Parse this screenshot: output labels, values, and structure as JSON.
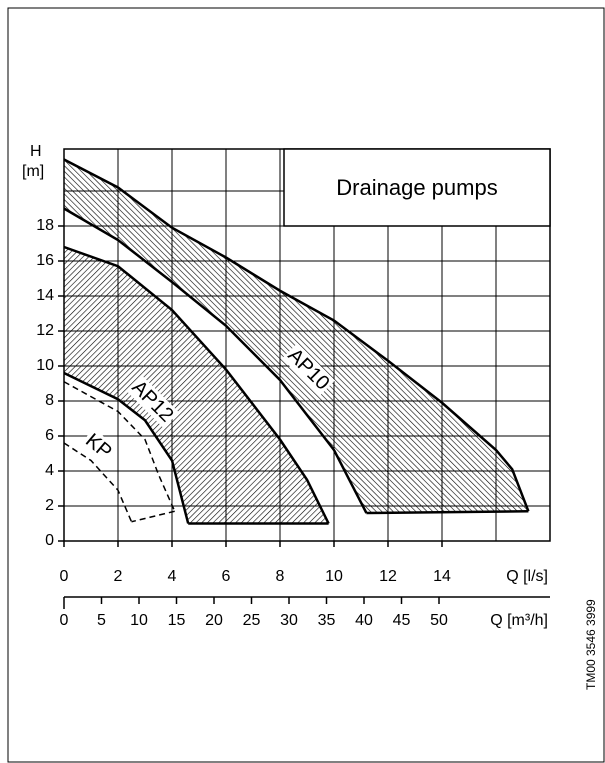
{
  "chart_data": {
    "type": "band",
    "title": "Drainage pumps",
    "y_label": "H",
    "y_unit": "[m]",
    "x_label": "Q [l/s]",
    "x2_label": "Q [m³/h]",
    "code": "TM00 3546 3999",
    "xlim": [
      0,
      18
    ],
    "ylim": [
      0,
      22.4
    ],
    "x2lim": [
      0,
      64.8
    ],
    "xticks": [
      0,
      2,
      4,
      6,
      8,
      10,
      12,
      14
    ],
    "yticks": [
      0,
      2,
      4,
      6,
      8,
      10,
      12,
      14,
      16,
      18
    ],
    "x2ticks": [
      0,
      5,
      10,
      15,
      20,
      25,
      30,
      35,
      40,
      45,
      50
    ],
    "xgrid": [
      0,
      2,
      4,
      6,
      8,
      10,
      12,
      14,
      16
    ],
    "ygrid": [
      0,
      2,
      4,
      6,
      8,
      10,
      12,
      14,
      16,
      18,
      20
    ],
    "grid": true,
    "series": [
      {
        "name": "AP10",
        "fill": "hatch",
        "hatch_angle": -45,
        "line_style": "solid",
        "upper": {
          "x": [
            0,
            2,
            4,
            6,
            8,
            10,
            12,
            14,
            16,
            16.6,
            17.2
          ],
          "y": [
            21.8,
            20.2,
            17.9,
            16.2,
            14.3,
            12.6,
            10.3,
            7.9,
            5.2,
            4.1,
            1.7
          ]
        },
        "lower": {
          "x": [
            0,
            2,
            4,
            6,
            8,
            10,
            11.2
          ],
          "y": [
            19.0,
            17.2,
            14.8,
            12.3,
            9.2,
            5.2,
            1.6
          ]
        }
      },
      {
        "name": "AP12",
        "fill": "hatch",
        "hatch_angle": 45,
        "line_style": "solid",
        "upper": {
          "x": [
            0,
            2,
            4,
            6,
            8,
            9,
            9.8
          ],
          "y": [
            16.8,
            15.7,
            13.2,
            9.8,
            5.8,
            3.5,
            1.0
          ]
        },
        "lower": {
          "x": [
            0,
            2,
            3,
            4,
            4.6
          ],
          "y": [
            9.6,
            8.1,
            6.9,
            4.6,
            1.0
          ]
        }
      },
      {
        "name": "KP",
        "fill": "none",
        "hatch_angle": 0,
        "line_style": "dashed",
        "upper": {
          "x": [
            0,
            2,
            3,
            3.5,
            4.1
          ],
          "y": [
            9.1,
            7.4,
            5.8,
            3.8,
            1.7
          ]
        },
        "lower": {
          "x": [
            0,
            1,
            2,
            2.5
          ],
          "y": [
            5.6,
            4.6,
            2.9,
            1.1
          ]
        }
      }
    ]
  }
}
